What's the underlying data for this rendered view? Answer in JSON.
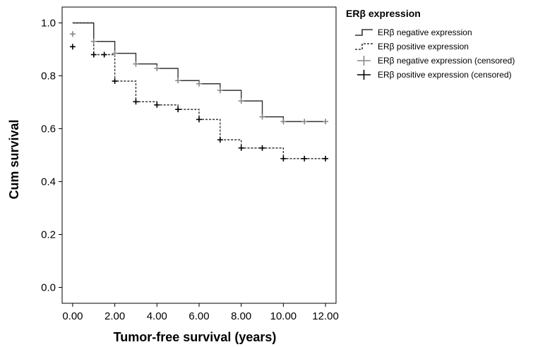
{
  "chart_data": {
    "type": "line",
    "title": "",
    "xlabel": "Tumor-free survival (years)",
    "ylabel": "Cum survival",
    "xlim": [
      -0.5,
      12.5
    ],
    "ylim": [
      -0.06,
      1.06
    ],
    "x_ticks": [
      0,
      2,
      4,
      6,
      8,
      10,
      12
    ],
    "x_tick_labels": [
      "0.00",
      "2.00",
      "4.00",
      "6.00",
      "8.00",
      "10.00",
      "12.00"
    ],
    "y_ticks": [
      0,
      0.2,
      0.4,
      0.6,
      0.8,
      1.0
    ],
    "y_tick_labels": [
      "0.0",
      "0.2",
      "0.4",
      "0.6",
      "0.8",
      "1.0"
    ],
    "grid": false,
    "legend": {
      "title": "ERβ expression",
      "placement": "right"
    },
    "series": [
      {
        "name": "ERβ negative expression",
        "style": "solid",
        "color": "#333333",
        "steps": [
          {
            "x": 0,
            "y": 1.0
          },
          {
            "x": 1,
            "y": 0.93
          },
          {
            "x": 2,
            "y": 0.885
          },
          {
            "x": 3,
            "y": 0.845
          },
          {
            "x": 4,
            "y": 0.828
          },
          {
            "x": 5,
            "y": 0.782
          },
          {
            "x": 6,
            "y": 0.77
          },
          {
            "x": 7,
            "y": 0.745
          },
          {
            "x": 8,
            "y": 0.705
          },
          {
            "x": 9,
            "y": 0.645
          },
          {
            "x": 10,
            "y": 0.627
          },
          {
            "x": 12,
            "y": 0.627
          }
        ]
      },
      {
        "name": "ERβ positive expression",
        "style": "dashed",
        "color": "#333333",
        "steps": [
          {
            "x": 0,
            "y": 1.0
          },
          {
            "x": 1,
            "y": 0.88
          },
          {
            "x": 2,
            "y": 0.78
          },
          {
            "x": 3,
            "y": 0.702
          },
          {
            "x": 4,
            "y": 0.69
          },
          {
            "x": 5,
            "y": 0.673
          },
          {
            "x": 6,
            "y": 0.635
          },
          {
            "x": 7,
            "y": 0.558
          },
          {
            "x": 8,
            "y": 0.527
          },
          {
            "x": 10,
            "y": 0.487
          },
          {
            "x": 12,
            "y": 0.487
          }
        ]
      },
      {
        "name": "ERβ negative expression (censored)",
        "marker": "plus",
        "color": "#888888",
        "points": [
          {
            "x": 0,
            "y": 0.958
          },
          {
            "x": 1,
            "y": 0.93
          },
          {
            "x": 2,
            "y": 0.885
          },
          {
            "x": 3,
            "y": 0.845
          },
          {
            "x": 4,
            "y": 0.828
          },
          {
            "x": 5,
            "y": 0.782
          },
          {
            "x": 6,
            "y": 0.77
          },
          {
            "x": 7,
            "y": 0.745
          },
          {
            "x": 8,
            "y": 0.705
          },
          {
            "x": 9,
            "y": 0.645
          },
          {
            "x": 10,
            "y": 0.627
          },
          {
            "x": 11,
            "y": 0.627
          },
          {
            "x": 12,
            "y": 0.627
          }
        ]
      },
      {
        "name": "ERβ positive expression (censored)",
        "marker": "plus",
        "color": "#000000",
        "points": [
          {
            "x": 0,
            "y": 0.91
          },
          {
            "x": 1,
            "y": 0.88
          },
          {
            "x": 1.5,
            "y": 0.88
          },
          {
            "x": 2,
            "y": 0.78
          },
          {
            "x": 3,
            "y": 0.702
          },
          {
            "x": 4,
            "y": 0.69
          },
          {
            "x": 5,
            "y": 0.673
          },
          {
            "x": 6,
            "y": 0.635
          },
          {
            "x": 7,
            "y": 0.558
          },
          {
            "x": 8,
            "y": 0.527
          },
          {
            "x": 9,
            "y": 0.527
          },
          {
            "x": 10,
            "y": 0.487
          },
          {
            "x": 11,
            "y": 0.487
          },
          {
            "x": 12,
            "y": 0.487
          }
        ]
      }
    ]
  }
}
